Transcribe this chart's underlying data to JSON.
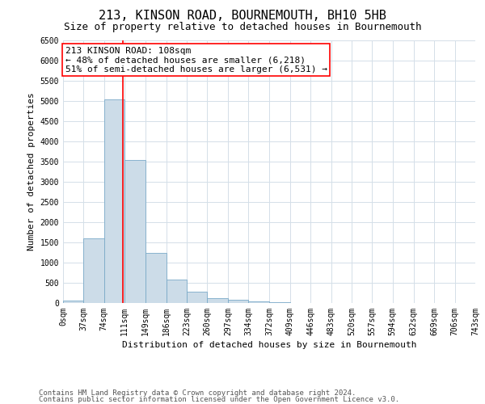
{
  "title": "213, KINSON ROAD, BOURNEMOUTH, BH10 5HB",
  "subtitle": "Size of property relative to detached houses in Bournemouth",
  "xlabel": "Distribution of detached houses by size in Bournemouth",
  "ylabel": "Number of detached properties",
  "footer_line1": "Contains HM Land Registry data © Crown copyright and database right 2024.",
  "footer_line2": "Contains public sector information licensed under the Open Government Licence v3.0.",
  "bin_edges": [
    0,
    37,
    74,
    111,
    149,
    186,
    223,
    260,
    297,
    334,
    372,
    409,
    446,
    483,
    520,
    557,
    594,
    632,
    669,
    706,
    743
  ],
  "bar_heights": [
    55,
    1600,
    5050,
    3550,
    1250,
    580,
    275,
    120,
    75,
    45,
    18,
    5,
    2,
    1,
    0,
    0,
    0,
    0,
    0,
    0
  ],
  "bar_color": "#ccdce8",
  "bar_edge_color": "#7aaac8",
  "grid_color": "#d4dfe8",
  "vline_x": 108,
  "vline_color": "red",
  "annotation_text": "213 KINSON ROAD: 108sqm\n← 48% of detached houses are smaller (6,218)\n51% of semi-detached houses are larger (6,531) →",
  "annotation_box_color": "white",
  "annotation_box_edge_color": "red",
  "ylim": [
    0,
    6500
  ],
  "yticks": [
    0,
    500,
    1000,
    1500,
    2000,
    2500,
    3000,
    3500,
    4000,
    4500,
    5000,
    5500,
    6000,
    6500
  ],
  "title_fontsize": 11,
  "subtitle_fontsize": 9,
  "axis_label_fontsize": 8,
  "tick_fontsize": 7,
  "footer_fontsize": 6.5,
  "annotation_fontsize": 8
}
